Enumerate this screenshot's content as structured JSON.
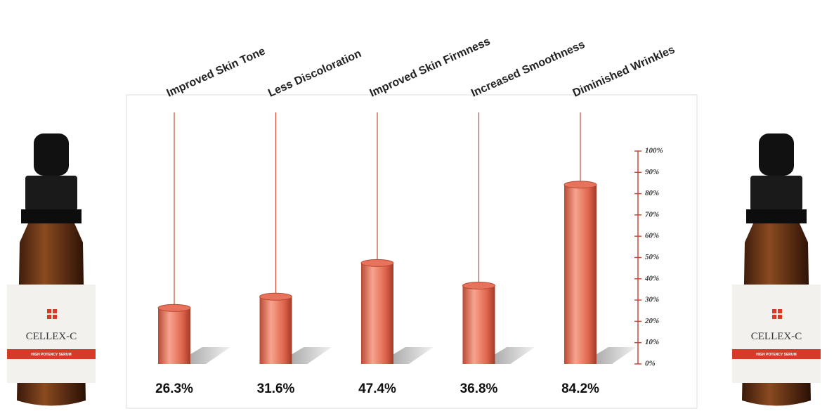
{
  "chart_data": {
    "type": "bar",
    "categories": [
      "Improved Skin Tone",
      "Less Discoloration",
      "Improved Skin Firmness",
      "Increased Smoothness",
      "Diminished Wrinkles"
    ],
    "values": [
      26.3,
      31.6,
      47.4,
      36.8,
      84.2
    ],
    "value_labels": [
      "26.3%",
      "31.6%",
      "47.4%",
      "36.8%",
      "84.2%"
    ],
    "color": "#e8735c",
    "ylim": [
      0,
      100
    ],
    "yticks": [
      {
        "value": 0,
        "label": "0%"
      },
      {
        "value": 10,
        "label": "10%"
      },
      {
        "value": 20,
        "label": "20%"
      },
      {
        "value": 30,
        "label": "30%"
      },
      {
        "value": 40,
        "label": "40%"
      },
      {
        "value": 50,
        "label": "50%"
      },
      {
        "value": 60,
        "label": "60%"
      },
      {
        "value": 70,
        "label": "70%"
      },
      {
        "value": 80,
        "label": "80%"
      },
      {
        "value": 90,
        "label": "90%"
      },
      {
        "value": 100,
        "label": "100%"
      }
    ]
  },
  "product": {
    "brand": "CELLEX-C",
    "tagline": "HIGH POTENCY SERUM"
  }
}
